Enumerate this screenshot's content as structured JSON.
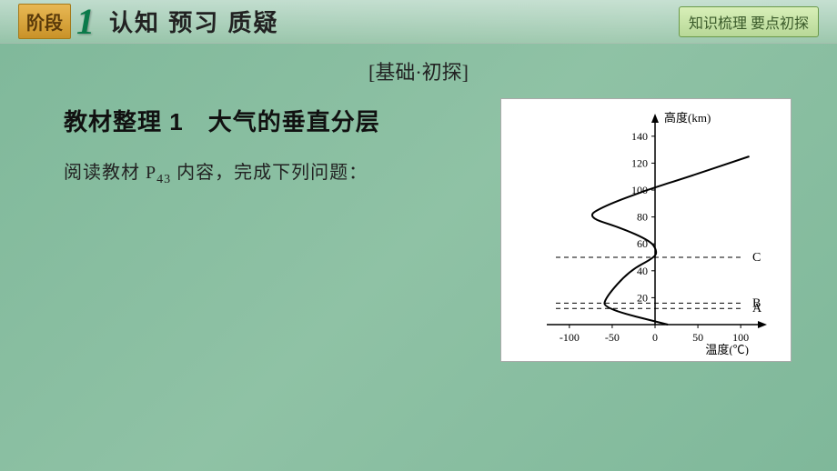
{
  "header": {
    "stage_label": "阶段",
    "stage_number": "1",
    "title": "认知 预习 质疑",
    "right_box": "知识梳理 要点初探"
  },
  "subheader": "[基础·初探]",
  "section": {
    "title_prefix": "教材整理 1",
    "title_main": "大气的垂直分层",
    "instruction_pre": "阅读教材 P",
    "instruction_sub": "43",
    "instruction_post": " 内容，完成下列问题："
  },
  "chart": {
    "y_label": "高度(km)",
    "x_label": "温度(℃)",
    "y_ticks": [
      0,
      20,
      40,
      60,
      80,
      100,
      120,
      140
    ],
    "x_ticks": [
      -100,
      -50,
      0,
      50,
      100
    ],
    "y_range": [
      0,
      150
    ],
    "x_range": [
      -120,
      120
    ],
    "axis_color": "#000000",
    "tick_fontsize": 12,
    "label_fontsize": 13,
    "line_width": 2,
    "dash_pattern": "5,4",
    "background_color": "#ffffff",
    "curve_points": [
      [
        15,
        0
      ],
      [
        -60,
        12
      ],
      [
        -58,
        20
      ],
      [
        -30,
        40
      ],
      [
        0,
        50
      ],
      [
        2,
        55
      ],
      [
        -5,
        62
      ],
      [
        -40,
        72
      ],
      [
        -80,
        80
      ],
      [
        -60,
        88
      ],
      [
        -10,
        100
      ],
      [
        40,
        110
      ],
      [
        110,
        125
      ]
    ],
    "layer_lines": [
      {
        "y": 12,
        "label": "A"
      },
      {
        "y": 16,
        "label": "B"
      },
      {
        "y": 50,
        "label": "C"
      }
    ]
  }
}
